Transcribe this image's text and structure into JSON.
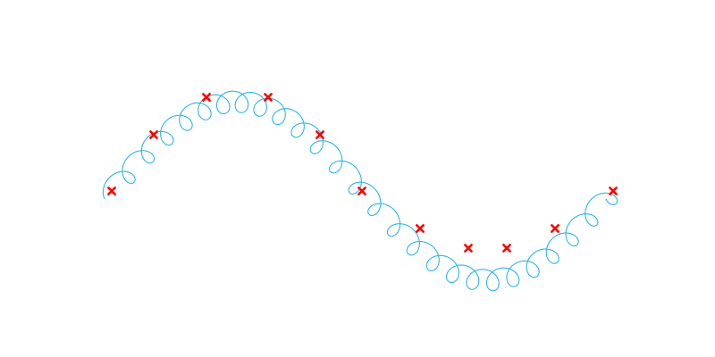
{
  "diagram": {
    "curve_color": "#2bb5e8",
    "marker_color": "#ff0000",
    "marker_shape": "x-cross",
    "marker_count": 11
  }
}
